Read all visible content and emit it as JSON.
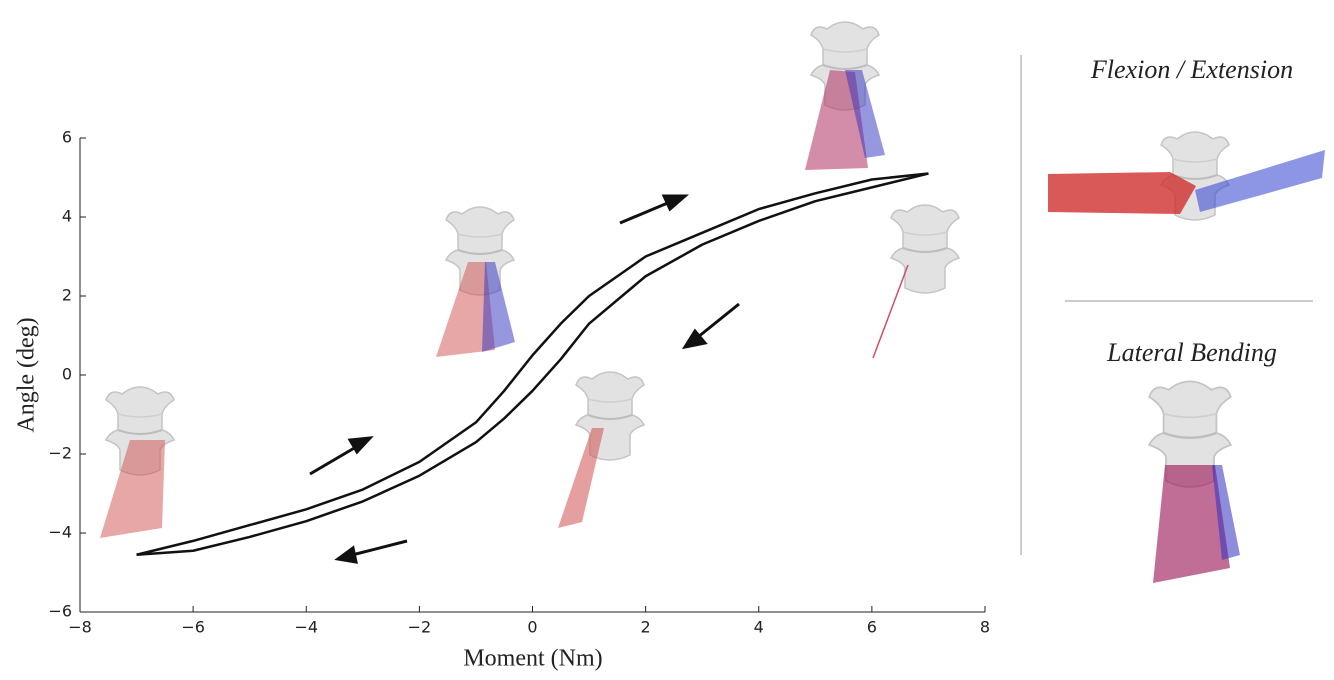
{
  "chart_data": {
    "type": "line",
    "xlabel": "Moment (Nm)",
    "ylabel": "Angle (deg)",
    "x": [
      -7,
      -6,
      -5,
      -4,
      -3,
      -2,
      -1,
      -0.5,
      0,
      0.5,
      1,
      2,
      3,
      4,
      5,
      6,
      7
    ],
    "series": [
      {
        "color": "#111111",
        "values": [
          -4.55,
          -4.2,
          -3.8,
          -3.4,
          -2.9,
          -2.2,
          -1.2,
          -0.4,
          0.5,
          1.3,
          2.0,
          3.0,
          3.6,
          4.2,
          4.6,
          4.95,
          5.1
        ]
      },
      {
        "color": "#111111",
        "values": [
          -4.55,
          -4.45,
          -4.1,
          -3.7,
          -3.2,
          -2.55,
          -1.7,
          -1.1,
          -0.4,
          0.4,
          1.3,
          2.5,
          3.3,
          3.9,
          4.4,
          4.75,
          5.1
        ]
      }
    ],
    "xlim": [
      -8,
      8
    ],
    "xticks": [
      {
        "value": -8,
        "label": "−8"
      },
      {
        "value": -6,
        "label": "−6"
      },
      {
        "value": -4,
        "label": "−4"
      },
      {
        "value": -2,
        "label": "−2"
      },
      0,
      2,
      4,
      6,
      8
    ],
    "ylim": [
      -6,
      6
    ],
    "yticks": [
      {
        "value": -6,
        "label": "−6"
      },
      {
        "value": -4,
        "label": "−4"
      },
      {
        "value": -2,
        "label": "−2"
      },
      0,
      2,
      4,
      6
    ],
    "annotations": [
      "Flexion / Extension",
      "Lateral Bending"
    ]
  }
}
